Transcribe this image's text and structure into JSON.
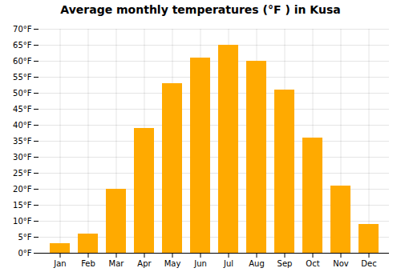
{
  "chart_data": {
    "type": "bar",
    "title": "Average monthly temperatures (°F ) in Kusa",
    "categories": [
      "Jan",
      "Feb",
      "Mar",
      "Apr",
      "May",
      "Jun",
      "Jul",
      "Aug",
      "Sep",
      "Oct",
      "Nov",
      "Dec"
    ],
    "values": [
      3,
      6,
      20,
      39,
      53,
      61,
      65,
      60,
      51,
      36,
      21,
      9
    ],
    "color": "#FFAA00",
    "ylim": [
      0,
      70
    ],
    "yticks": [
      {
        "value": 0,
        "label": "0°F"
      },
      {
        "value": 5,
        "label": "5°F"
      },
      {
        "value": 10,
        "label": "10°F"
      },
      {
        "value": 15,
        "label": "15°F"
      },
      {
        "value": 20,
        "label": "20°F"
      },
      {
        "value": 25,
        "label": "25°F"
      },
      {
        "value": 30,
        "label": "30°F"
      },
      {
        "value": 35,
        "label": "35°F"
      },
      {
        "value": 40,
        "label": "40°F"
      },
      {
        "value": 45,
        "label": "45°F"
      },
      {
        "value": 50,
        "label": "50°F"
      },
      {
        "value": 55,
        "label": "55°F"
      },
      {
        "value": 60,
        "label": "60°F"
      },
      {
        "value": 65,
        "label": "65°F"
      },
      {
        "value": 70,
        "label": "70°F"
      }
    ],
    "grid": true
  }
}
